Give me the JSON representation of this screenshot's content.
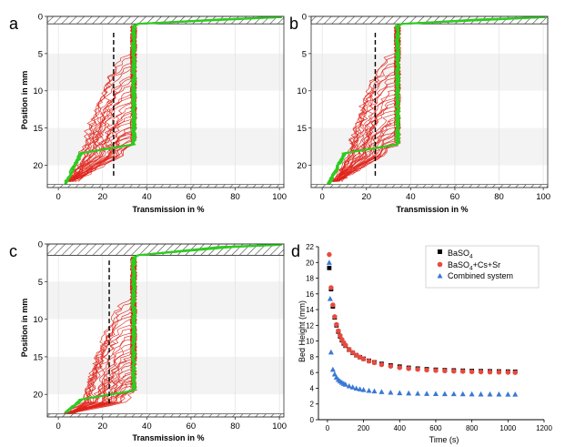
{
  "chart_data": [
    {
      "panel": "a",
      "type": "line",
      "title": "",
      "xlabel": "Transmission in %",
      "ylabel": "Position in mm",
      "xlim": [
        -5,
        102
      ],
      "ylim": [
        0,
        23
      ],
      "xticks": [
        "0",
        "20",
        "40",
        "60",
        "80",
        "100"
      ],
      "yticks": [
        "0",
        "5",
        "10",
        "15",
        "20"
      ],
      "interface_level_mm": 17.2,
      "top_meniscus_mm": 1.0,
      "vertical_dashed_x": 25,
      "series": [
        {
          "name": "early profiles (green)",
          "color": "#2ecc1f",
          "transmission_plateau": 34
        },
        {
          "name": "evolving profiles (red)",
          "color": "#e0231b",
          "transmission_plateau": 33
        }
      ]
    },
    {
      "panel": "b",
      "type": "line",
      "title": "",
      "xlabel": "Transmission in %",
      "ylabel": "",
      "xlim": [
        -5,
        102
      ],
      "ylim": [
        0,
        23
      ],
      "xticks": [
        "0",
        "20",
        "40",
        "60",
        "80",
        "100"
      ],
      "yticks": [
        "0",
        "5",
        "10",
        "15",
        "20"
      ],
      "interface_level_mm": 17.2,
      "top_meniscus_mm": 1.0,
      "vertical_dashed_x": 24,
      "series": [
        {
          "name": "early profiles (green)",
          "color": "#2ecc1f",
          "transmission_plateau": 34
        },
        {
          "name": "evolving profiles (red)",
          "color": "#e0231b",
          "transmission_plateau": 33
        }
      ]
    },
    {
      "panel": "c",
      "type": "line",
      "title": "",
      "xlabel": "Transmission in %",
      "ylabel": "Position in mm",
      "xlim": [
        -5,
        102
      ],
      "ylim": [
        0,
        23
      ],
      "xticks": [
        "0",
        "20",
        "40",
        "60",
        "80",
        "100"
      ],
      "yticks": [
        "0",
        "5",
        "10",
        "15",
        "20"
      ],
      "interface_level_mm": 19.5,
      "top_meniscus_mm": 1.5,
      "vertical_dashed_x": 23,
      "series": [
        {
          "name": "early profiles (green)",
          "color": "#2ecc1f",
          "transmission_plateau": 34
        },
        {
          "name": "evolving profiles (red)",
          "color": "#e0231b",
          "transmission_plateau": 33
        }
      ]
    },
    {
      "panel": "d",
      "type": "scatter",
      "title": "",
      "xlabel": "Time (s)",
      "ylabel": "Bed Height (mm)",
      "xlim": [
        -50,
        1200
      ],
      "ylim": [
        0,
        22
      ],
      "xticks": [
        "0",
        "200",
        "400",
        "600",
        "800",
        "1000",
        "1200"
      ],
      "yticks": [
        "0",
        "2",
        "4",
        "6",
        "8",
        "10",
        "12",
        "14",
        "16",
        "18",
        "20",
        "22"
      ],
      "legend_position": "top-right",
      "series": [
        {
          "name": "BaSO4",
          "legend_main": "BaSO",
          "legend_sub": "4",
          "legend_tail": "",
          "marker": "square",
          "color": "#000000",
          "x": [
            10,
            20,
            30,
            40,
            50,
            60,
            70,
            80,
            90,
            100,
            120,
            140,
            160,
            180,
            200,
            230,
            260,
            300,
            350,
            400,
            450,
            500,
            550,
            600,
            650,
            700,
            750,
            800,
            850,
            900,
            950,
            1000,
            1040
          ],
          "y": [
            19.3,
            16.6,
            14.4,
            13.0,
            12.0,
            11.2,
            10.6,
            10.1,
            9.7,
            9.4,
            8.9,
            8.5,
            8.2,
            7.95,
            7.75,
            7.5,
            7.3,
            7.1,
            6.9,
            6.75,
            6.6,
            6.5,
            6.42,
            6.35,
            6.3,
            6.27,
            6.23,
            6.2,
            6.18,
            6.16,
            6.14,
            6.12,
            6.1
          ]
        },
        {
          "name": "BaSO4+Cs+Sr",
          "legend_main": "BaSO",
          "legend_sub": "4",
          "legend_tail": "+Cs+Sr",
          "marker": "circle",
          "color": "#e84a3f",
          "x": [
            10,
            20,
            30,
            40,
            50,
            60,
            70,
            80,
            90,
            100,
            120,
            140,
            160,
            180,
            200,
            230,
            260,
            300,
            350,
            400,
            450,
            500,
            550,
            600,
            650,
            700,
            750,
            800,
            850,
            900,
            950,
            1000,
            1040
          ],
          "y": [
            21.0,
            16.8,
            14.6,
            13.1,
            12.1,
            11.3,
            10.7,
            10.2,
            9.8,
            9.45,
            8.95,
            8.55,
            8.2,
            7.95,
            7.72,
            7.45,
            7.25,
            7.0,
            6.8,
            6.62,
            6.5,
            6.4,
            6.32,
            6.26,
            6.21,
            6.17,
            6.14,
            6.1,
            6.08,
            6.06,
            6.04,
            6.02,
            6.0
          ]
        },
        {
          "name": "Combined system",
          "legend_main": "Combined system",
          "legend_sub": "",
          "legend_tail": "",
          "marker": "triangle",
          "color": "#3a78d6",
          "x": [
            10,
            15,
            20,
            30,
            40,
            50,
            60,
            70,
            80,
            90,
            100,
            120,
            140,
            160,
            180,
            200,
            230,
            260,
            300,
            350,
            400,
            450,
            500,
            550,
            600,
            650,
            700,
            750,
            800,
            850,
            900,
            950,
            1000,
            1040
          ],
          "y": [
            20.0,
            15.4,
            8.6,
            6.4,
            5.8,
            5.4,
            5.1,
            4.9,
            4.75,
            4.6,
            4.5,
            4.3,
            4.15,
            4.0,
            3.9,
            3.82,
            3.72,
            3.64,
            3.56,
            3.48,
            3.42,
            3.38,
            3.35,
            3.33,
            3.31,
            3.3,
            3.29,
            3.28,
            3.27,
            3.26,
            3.25,
            3.25,
            3.24,
            3.24
          ]
        }
      ]
    }
  ]
}
